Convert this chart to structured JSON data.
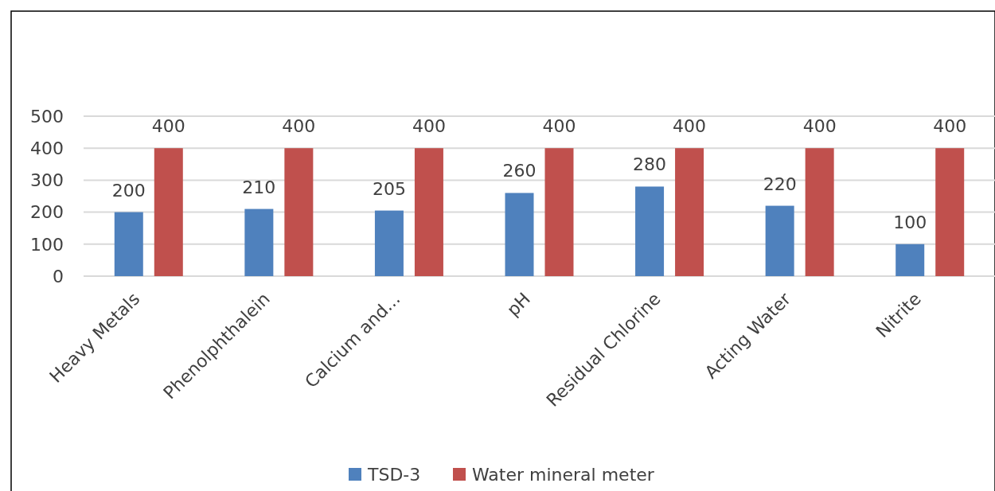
{
  "chart_data": {
    "type": "bar",
    "categories": [
      "Heavy Metals",
      "Phenolphthalein",
      "Calcium and...",
      "pH",
      "Residual Chlorine",
      "Acting Water",
      "Nitrite"
    ],
    "series": [
      {
        "name": "TSD-3",
        "color": "#4f81bd",
        "values": [
          200,
          210,
          205,
          260,
          280,
          220,
          100
        ]
      },
      {
        "name": "Water mineral meter",
        "color": "#c0504d",
        "values": [
          400,
          400,
          400,
          400,
          400,
          400,
          400
        ]
      }
    ],
    "ylim": [
      0,
      500
    ],
    "yticks": [
      0,
      100,
      200,
      300,
      400,
      500
    ],
    "grid": "y",
    "legend": "bottom",
    "data_labels": true
  }
}
